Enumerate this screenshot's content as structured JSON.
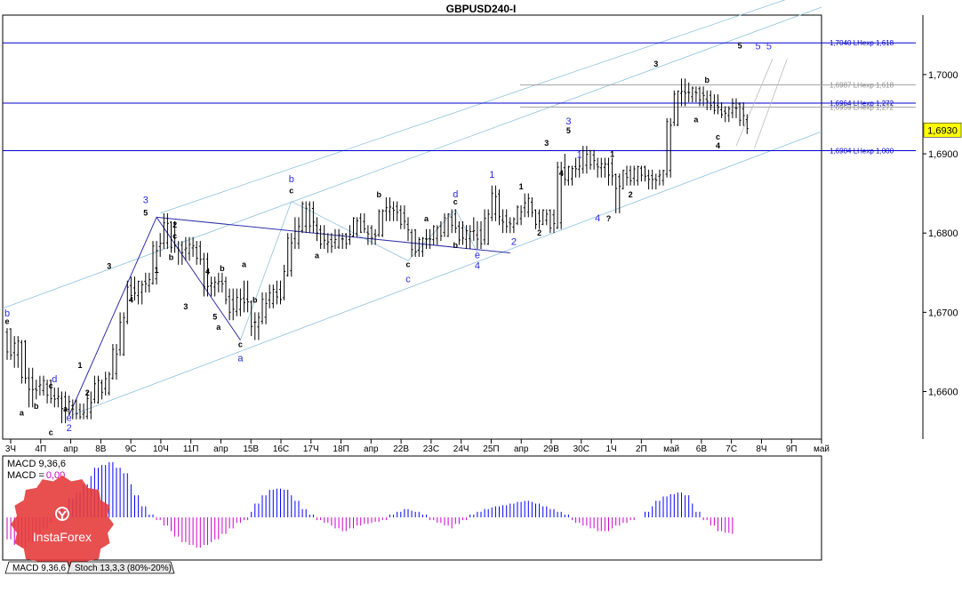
{
  "title": "GBPUSD240-I",
  "colors": {
    "frame": "#000000",
    "candle": "#000000",
    "hline": "#0000cc",
    "channel": "#8fc1dc",
    "wave_line": "#3030aa",
    "fib_gray": "#9a9a9a",
    "blue_label": "#2a2ae6",
    "price_badge_bg": "#ffff00",
    "macd_pos": "#0000ff",
    "macd_neg": "#cc00cc",
    "logo_red": "#e53c3c"
  },
  "chart_data": {
    "type": "candlestick",
    "symbol": "GBPUSD240-I",
    "timeframe": "H4",
    "ylim": [
      1.654,
      1.7075
    ],
    "y_ticks": [
      "1,7000",
      "1,6900",
      "1,6800",
      "1,6700",
      "1,6600"
    ],
    "y_tick_values": [
      1.7,
      1.69,
      1.68,
      1.67,
      1.66
    ],
    "current_price": {
      "value": 1.693,
      "label": "1,6930"
    },
    "x_ticks": [
      "3Ч",
      "4П",
      "апр",
      "8В",
      "9С",
      "10Ч",
      "11П",
      "апр",
      "15В",
      "16С",
      "17Ч",
      "18П",
      "апр",
      "22В",
      "23С",
      "24Ч",
      "25П",
      "апр",
      "29В",
      "30С",
      "1Ч",
      "2П",
      "май",
      "6В",
      "7С",
      "8Ч",
      "9П",
      "май"
    ],
    "candles": [
      [
        1.6675,
        1.668,
        1.664,
        1.665
      ],
      [
        1.665,
        1.667,
        1.663,
        1.666
      ],
      [
        1.666,
        1.6665,
        1.661,
        1.662
      ],
      [
        1.662,
        1.663,
        1.658,
        1.66
      ],
      [
        1.66,
        1.6615,
        1.659,
        1.6605
      ],
      [
        1.6605,
        1.662,
        1.6595,
        1.661
      ],
      [
        1.661,
        1.6615,
        1.6585,
        1.6595
      ],
      [
        1.6595,
        1.6605,
        1.658,
        1.659
      ],
      [
        1.659,
        1.66,
        1.656,
        1.658
      ],
      [
        1.658,
        1.6595,
        1.657,
        1.6585
      ],
      [
        1.6585,
        1.659,
        1.6565,
        1.6575
      ],
      [
        1.6575,
        1.6585,
        1.6565,
        1.657
      ],
      [
        1.657,
        1.66,
        1.6565,
        1.659
      ],
      [
        1.659,
        1.662,
        1.6585,
        1.661
      ],
      [
        1.661,
        1.6615,
        1.659,
        1.66
      ],
      [
        1.66,
        1.6625,
        1.6595,
        1.662
      ],
      [
        1.662,
        1.666,
        1.6615,
        1.665
      ],
      [
        1.665,
        1.67,
        1.6645,
        1.669
      ],
      [
        1.669,
        1.674,
        1.6685,
        1.673
      ],
      [
        1.673,
        1.6745,
        1.6715,
        1.6725
      ],
      [
        1.6725,
        1.674,
        1.671,
        1.6735
      ],
      [
        1.6735,
        1.675,
        1.6725,
        1.674
      ],
      [
        1.674,
        1.679,
        1.6735,
        1.678
      ],
      [
        1.678,
        1.68,
        1.677,
        1.679
      ],
      [
        1.679,
        1.6825,
        1.678,
        1.681
      ],
      [
        1.681,
        1.6815,
        1.6775,
        1.6785
      ],
      [
        1.6785,
        1.679,
        1.676,
        1.6775
      ],
      [
        1.6775,
        1.6795,
        1.6765,
        1.6785
      ],
      [
        1.6785,
        1.6795,
        1.677,
        1.678
      ],
      [
        1.678,
        1.679,
        1.676,
        1.677
      ],
      [
        1.677,
        1.6775,
        1.672,
        1.673
      ],
      [
        1.673,
        1.6745,
        1.672,
        1.674
      ],
      [
        1.674,
        1.675,
        1.6725,
        1.6735
      ],
      [
        1.6735,
        1.6745,
        1.671,
        1.672
      ],
      [
        1.672,
        1.673,
        1.669,
        1.67
      ],
      [
        1.67,
        1.673,
        1.6695,
        1.672
      ],
      [
        1.672,
        1.674,
        1.67,
        1.671
      ],
      [
        1.671,
        1.6715,
        1.667,
        1.6685
      ],
      [
        1.6685,
        1.67,
        1.6665,
        1.669
      ],
      [
        1.669,
        1.6725,
        1.6685,
        1.6715
      ],
      [
        1.6715,
        1.6735,
        1.6705,
        1.6725
      ],
      [
        1.6725,
        1.674,
        1.671,
        1.672
      ],
      [
        1.672,
        1.676,
        1.6715,
        1.675
      ],
      [
        1.675,
        1.68,
        1.6745,
        1.679
      ],
      [
        1.679,
        1.682,
        1.678,
        1.6805
      ],
      [
        1.6805,
        1.684,
        1.68,
        1.6835
      ],
      [
        1.6835,
        1.684,
        1.68,
        1.681
      ],
      [
        1.681,
        1.682,
        1.679,
        1.68
      ],
      [
        1.68,
        1.681,
        1.678,
        1.679
      ],
      [
        1.679,
        1.68,
        1.6775,
        1.6785
      ],
      [
        1.6785,
        1.6805,
        1.678,
        1.6795
      ],
      [
        1.6795,
        1.68,
        1.678,
        1.679
      ],
      [
        1.679,
        1.681,
        1.6785,
        1.68
      ],
      [
        1.68,
        1.682,
        1.6795,
        1.6815
      ],
      [
        1.6815,
        1.6825,
        1.68,
        1.6805
      ],
      [
        1.6805,
        1.681,
        1.6785,
        1.6795
      ],
      [
        1.6795,
        1.6805,
        1.6785,
        1.68
      ],
      [
        1.68,
        1.683,
        1.6795,
        1.6825
      ],
      [
        1.6825,
        1.6845,
        1.6815,
        1.6835
      ],
      [
        1.6835,
        1.684,
        1.6815,
        1.6825
      ],
      [
        1.6825,
        1.6835,
        1.6805,
        1.6815
      ],
      [
        1.6815,
        1.682,
        1.679,
        1.68
      ],
      [
        1.68,
        1.6805,
        1.677,
        1.678
      ],
      [
        1.678,
        1.6795,
        1.677,
        1.679
      ],
      [
        1.679,
        1.6805,
        1.678,
        1.6795
      ],
      [
        1.6795,
        1.681,
        1.6785,
        1.6805
      ],
      [
        1.6805,
        1.6815,
        1.679,
        1.68
      ],
      [
        1.68,
        1.6825,
        1.6795,
        1.682
      ],
      [
        1.682,
        1.683,
        1.68,
        1.681
      ],
      [
        1.681,
        1.6815,
        1.6785,
        1.679
      ],
      [
        1.679,
        1.681,
        1.678,
        1.6805
      ],
      [
        1.6805,
        1.682,
        1.679,
        1.68
      ],
      [
        1.68,
        1.6815,
        1.678,
        1.679
      ],
      [
        1.679,
        1.683,
        1.6785,
        1.682
      ],
      [
        1.682,
        1.686,
        1.6815,
        1.685
      ],
      [
        1.685,
        1.6855,
        1.681,
        1.682
      ],
      [
        1.682,
        1.683,
        1.68,
        1.681
      ],
      [
        1.681,
        1.682,
        1.68,
        1.6815
      ],
      [
        1.6815,
        1.6835,
        1.681,
        1.683
      ],
      [
        1.683,
        1.685,
        1.682,
        1.684
      ],
      [
        1.684,
        1.6845,
        1.682,
        1.6825
      ],
      [
        1.6825,
        1.683,
        1.6805,
        1.6815
      ],
      [
        1.6815,
        1.683,
        1.681,
        1.6825
      ],
      [
        1.6825,
        1.683,
        1.68,
        1.681
      ],
      [
        1.681,
        1.689,
        1.6805,
        1.688
      ],
      [
        1.688,
        1.69,
        1.686,
        1.687
      ],
      [
        1.687,
        1.6885,
        1.686,
        1.688
      ],
      [
        1.688,
        1.6895,
        1.687,
        1.6885
      ],
      [
        1.6885,
        1.691,
        1.6875,
        1.69
      ],
      [
        1.69,
        1.6905,
        1.688,
        1.689
      ],
      [
        1.689,
        1.6895,
        1.687,
        1.688
      ],
      [
        1.688,
        1.6895,
        1.687,
        1.689
      ],
      [
        1.689,
        1.6895,
        1.686,
        1.687
      ],
      [
        1.687,
        1.6875,
        1.6825,
        1.686
      ],
      [
        1.686,
        1.688,
        1.6855,
        1.6875
      ],
      [
        1.6875,
        1.6885,
        1.686,
        1.687
      ],
      [
        1.687,
        1.6885,
        1.686,
        1.688
      ],
      [
        1.688,
        1.6885,
        1.6865,
        1.6875
      ],
      [
        1.6875,
        1.688,
        1.6855,
        1.6865
      ],
      [
        1.6865,
        1.6875,
        1.6855,
        1.687
      ],
      [
        1.687,
        1.688,
        1.686,
        1.6875
      ],
      [
        1.6875,
        1.6945,
        1.687,
        1.694
      ],
      [
        1.694,
        1.698,
        1.6935,
        1.6975
      ],
      [
        1.6975,
        1.6995,
        1.696,
        1.698
      ],
      [
        1.698,
        1.699,
        1.6965,
        1.6975
      ],
      [
        1.6975,
        1.6985,
        1.6965,
        1.698
      ],
      [
        1.698,
        1.6985,
        1.696,
        1.697
      ],
      [
        1.697,
        1.698,
        1.6955,
        1.6965
      ],
      [
        1.6965,
        1.6975,
        1.695,
        1.6955
      ],
      [
        1.6955,
        1.6965,
        1.6945,
        1.695
      ],
      [
        1.695,
        1.696,
        1.694,
        1.6955
      ],
      [
        1.6955,
        1.697,
        1.6945,
        1.696
      ],
      [
        1.696,
        1.6965,
        1.6935,
        1.6945
      ],
      [
        1.6945,
        1.695,
        1.6925,
        1.693
      ]
    ],
    "horizontal_levels": [
      {
        "value": 1.704,
        "label": "1,7040 LHexp 1,618",
        "color": "#0000cc",
        "tone": "blue"
      },
      {
        "value": 1.6987,
        "label": "1,6987 LHexp 1,618",
        "color": "#9a9a9a",
        "tone": "gray"
      },
      {
        "value": 1.6964,
        "label": "1,6964 LHexp 1,272",
        "color": "#0000cc",
        "tone": "blue"
      },
      {
        "value": 1.6959,
        "label": "1,6959 LHexp 1,272",
        "color": "#9a9a9a",
        "tone": "gray"
      },
      {
        "value": 1.6904,
        "label": "1,6904 LHexp 1,000",
        "color": "#0000cc",
        "tone": "blue"
      }
    ],
    "wave_labels": [
      {
        "text": "b",
        "i": 0,
        "y": 1.6695,
        "c": "blue"
      },
      {
        "text": "e",
        "i": 0,
        "y": 1.6685,
        "c": "black"
      },
      {
        "text": "d",
        "i": 13,
        "y": 1.6612,
        "c": "blue"
      },
      {
        "text": "c",
        "i": 12,
        "y": 1.6604,
        "c": "black"
      },
      {
        "text": "a",
        "i": 4,
        "y": 1.657,
        "c": "black"
      },
      {
        "text": "b",
        "i": 8,
        "y": 1.6578,
        "c": "black"
      },
      {
        "text": "a",
        "i": 16,
        "y": 1.6575,
        "c": "black"
      },
      {
        "text": "c",
        "i": 12,
        "y": 1.6545,
        "c": "black"
      },
      {
        "text": "e",
        "i": 17,
        "y": 1.6563,
        "c": "blue"
      },
      {
        "text": "2",
        "i": 17,
        "y": 1.655,
        "c": "blue"
      },
      {
        "text": "1",
        "i": 20,
        "y": 1.663,
        "c": "black"
      },
      {
        "text": "2",
        "i": 22,
        "y": 1.6595,
        "c": "black"
      },
      {
        "text": "3",
        "i": 28,
        "y": 1.6755,
        "c": "black"
      },
      {
        "text": "4",
        "i": 34,
        "y": 1.6712,
        "c": "black"
      },
      {
        "text": "3",
        "i": 38,
        "y": 1.6838,
        "c": "blue"
      },
      {
        "text": "5",
        "i": 38,
        "y": 1.6822,
        "c": "black"
      },
      {
        "text": "2",
        "i": 46,
        "y": 1.6807,
        "c": "black"
      },
      {
        "text": "c",
        "i": 46,
        "y": 1.6793,
        "c": "black"
      },
      {
        "text": "b",
        "i": 45,
        "y": 1.6766,
        "c": "black"
      },
      {
        "text": "1",
        "i": 41,
        "y": 1.675,
        "c": "black"
      },
      {
        "text": "3",
        "i": 49,
        "y": 1.6704,
        "c": "black"
      },
      {
        "text": "4",
        "i": 55,
        "y": 1.6748,
        "c": "black"
      },
      {
        "text": "b",
        "i": 59,
        "y": 1.6752,
        "c": "black"
      },
      {
        "text": "5",
        "i": 57,
        "y": 1.6691,
        "c": "black"
      },
      {
        "text": "a",
        "i": 58,
        "y": 1.6678,
        "c": "black"
      },
      {
        "text": "a",
        "i": 65,
        "y": 1.6757,
        "c": "black"
      },
      {
        "text": "b",
        "i": 68,
        "y": 1.6712,
        "c": "black"
      },
      {
        "text": "c",
        "i": 64,
        "y": 1.6656,
        "c": "black"
      },
      {
        "text": "a",
        "i": 64,
        "y": 1.6638,
        "c": "blue"
      },
      {
        "text": "b",
        "i": 78,
        "y": 1.6864,
        "c": "blue"
      },
      {
        "text": "c",
        "i": 78,
        "y": 1.685,
        "c": "black"
      },
      {
        "text": "a",
        "i": 85,
        "y": 1.6768,
        "c": "black"
      },
      {
        "text": "b",
        "i": 102,
        "y": 1.6845,
        "c": "black"
      },
      {
        "text": "a",
        "i": 115,
        "y": 1.6815,
        "c": "black"
      },
      {
        "text": "d",
        "i": 123,
        "y": 1.6845,
        "c": "blue"
      },
      {
        "text": "c",
        "i": 123,
        "y": 1.6836,
        "c": "black"
      },
      {
        "text": "b",
        "i": 123,
        "y": 1.6781,
        "c": "black"
      },
      {
        "text": "c",
        "i": 110,
        "y": 1.6757,
        "c": "black"
      },
      {
        "text": "c",
        "i": 110,
        "y": 1.6738,
        "c": "blue"
      },
      {
        "text": "e",
        "i": 129,
        "y": 1.6768,
        "c": "blue"
      },
      {
        "text": "4",
        "i": 129,
        "y": 1.6755,
        "c": "blue"
      },
      {
        "text": "1",
        "i": 133,
        "y": 1.687,
        "c": "blue"
      },
      {
        "text": "1",
        "i": 141,
        "y": 1.6855,
        "c": "black"
      },
      {
        "text": "2",
        "i": 139,
        "y": 1.6785,
        "c": "blue"
      },
      {
        "text": "2",
        "i": 146,
        "y": 1.6797,
        "c": "black"
      },
      {
        "text": "3",
        "i": 148,
        "y": 1.691,
        "c": "black"
      },
      {
        "text": "4",
        "i": 152,
        "y": 1.6872,
        "c": "black"
      },
      {
        "text": "3",
        "i": 154,
        "y": 1.6937,
        "c": "blue"
      },
      {
        "text": "5",
        "i": 154,
        "y": 1.6926,
        "c": "black"
      },
      {
        "text": "1",
        "i": 157,
        "y": 1.6895,
        "c": "blue"
      },
      {
        "text": "4",
        "i": 162,
        "y": 1.6815,
        "c": "blue"
      },
      {
        "text": "?",
        "i": 165,
        "y": 1.6815,
        "c": "black"
      },
      {
        "text": "1",
        "i": 166,
        "y": 1.6896,
        "c": "black"
      },
      {
        "text": "2",
        "i": 171,
        "y": 1.6845,
        "c": "black"
      },
      {
        "text": "3",
        "i": 178,
        "y": 1.701,
        "c": "black"
      },
      {
        "text": "b",
        "i": 192,
        "y": 1.699,
        "c": "black"
      },
      {
        "text": "a",
        "i": 189,
        "y": 1.694,
        "c": "black"
      },
      {
        "text": "c",
        "i": 195,
        "y": 1.6918,
        "c": "black"
      },
      {
        "text": "4",
        "i": 195,
        "y": 1.6907,
        "c": "black"
      },
      {
        "text": "5",
        "i": 201,
        "y": 1.7033,
        "c": "black"
      },
      {
        "text": "5",
        "i": 206,
        "y": 1.7032,
        "c": "blue"
      },
      {
        "text": "5",
        "i": 209,
        "y": 1.7032,
        "c": "blue"
      }
    ]
  },
  "macd": {
    "label1": "MACD 9,36,6",
    "label2": "MACD =",
    "value": "0,00",
    "histogram": [
      -40,
      -50,
      -55,
      -45,
      -30,
      -20,
      -10,
      5,
      20,
      35,
      45,
      60,
      75,
      90,
      95,
      100,
      90,
      80,
      60,
      40,
      20,
      5,
      -5,
      -15,
      -25,
      -35,
      -45,
      -50,
      -55,
      -50,
      -45,
      -40,
      -30,
      -20,
      -10,
      -5,
      10,
      25,
      40,
      50,
      52,
      50,
      40,
      30,
      15,
      5,
      -5,
      -10,
      -15,
      -20,
      -25,
      -20,
      -15,
      -12,
      -10,
      -8,
      -5,
      5,
      10,
      15,
      12,
      10,
      5,
      -5,
      -10,
      -15,
      -20,
      -12,
      -5,
      5,
      10,
      15,
      18,
      20,
      22,
      25,
      28,
      30,
      28,
      25,
      20,
      15,
      10,
      5,
      -5,
      -10,
      -15,
      -20,
      -25,
      -25,
      -20,
      -15,
      -10,
      -5,
      0,
      10,
      20,
      30,
      38,
      42,
      45,
      40,
      25,
      10,
      -5,
      -15,
      -25,
      -28,
      -30
    ]
  },
  "tabs": [
    "MACD 9,36,6",
    "Stoch 13,3,3 (80%-20%)"
  ],
  "logo": {
    "brand": "InstaForex"
  }
}
